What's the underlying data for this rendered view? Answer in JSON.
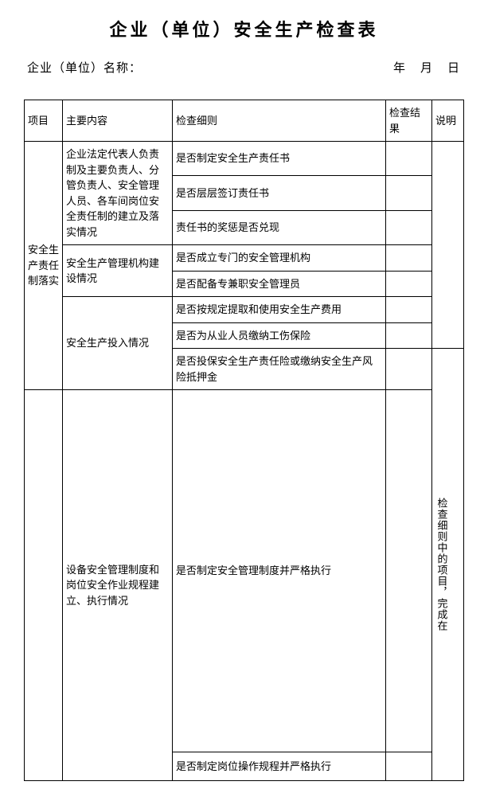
{
  "title": "企业（单位）安全生产检查表",
  "header": {
    "company_label": "企业（单位）名称：",
    "date_label": "年　月　日"
  },
  "table": {
    "headers": {
      "project": "项目",
      "content": "主要内容",
      "detail": "检查细则",
      "result": "检查结果",
      "note": "说明"
    },
    "project1": "安全生产责任制落实",
    "content1": "企业法定代表人负责制及主要负责人、分管负责人、安全管理人员、各车间岗位安全责任制的建立及落实情况",
    "detail1_1": "是否制定安全生产责任书",
    "detail1_2": "是否层层签订责任书",
    "detail1_3": "责任书的奖惩是否兑现",
    "content2": "安全生产管理机构建设情况",
    "detail2_1": "是否成立专门的安全管理机构",
    "detail2_2": "是否配备专兼职安全管理员",
    "content3": "安全生产投入情况",
    "detail3_1": "是否按规定提取和使用安全生产费用",
    "detail3_2": "是否为从业人员缴纳工伤保险",
    "detail3_3": "是否投保安全生产责任险或缴纳安全生产风险抵押金",
    "content4": "设备安全管理制度和岗位安全作业规程建立、执行情况",
    "detail4_1": "是否制定安全管理制度并严格执行",
    "detail4_2": "是否制定岗位操作规程并严格执行",
    "note_text": "检查细则中的项目，完成在"
  },
  "colors": {
    "border": "#000000",
    "background": "#ffffff",
    "text": "#000000"
  }
}
